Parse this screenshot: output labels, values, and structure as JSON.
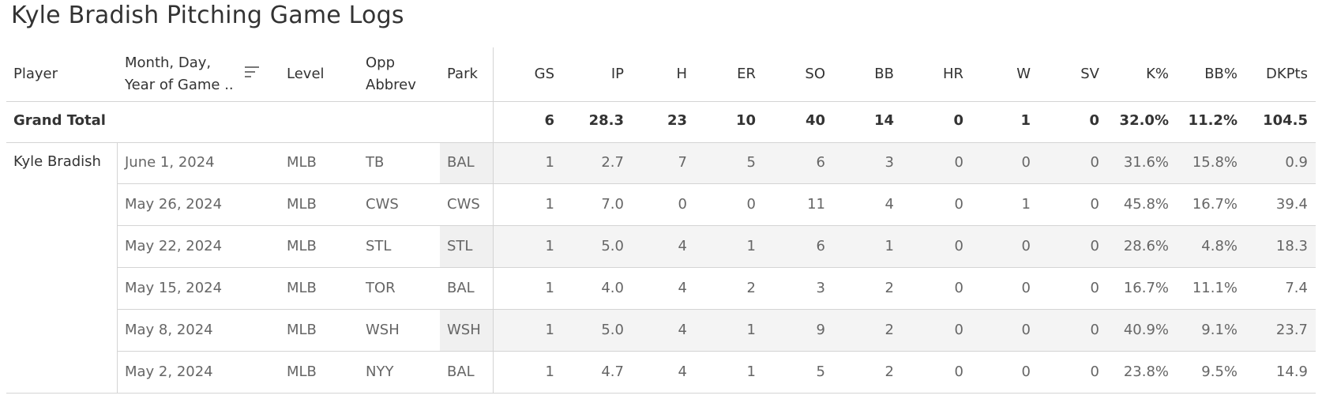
{
  "title": "Kyle Bradish Pitching Game Logs",
  "headers": {
    "player": "Player",
    "date_line1": "Month, Day,",
    "date_line2": "Year of Game ..",
    "level": "Level",
    "opp_line1": "Opp",
    "opp_line2": "Abbrev",
    "park": "Park",
    "stats": [
      "GS",
      "IP",
      "H",
      "ER",
      "SO",
      "BB",
      "HR",
      "W",
      "SV",
      "K%",
      "BB%",
      "DKPts"
    ]
  },
  "grand_total": {
    "label": "Grand Total",
    "stats": [
      "6",
      "28.3",
      "23",
      "10",
      "40",
      "14",
      "0",
      "1",
      "0",
      "32.0%",
      "11.2%",
      "104.5"
    ]
  },
  "player_name": "Kyle Bradish",
  "rows": [
    {
      "date": "June 1, 2024",
      "level": "MLB",
      "opp": "TB",
      "park": "BAL",
      "stats": [
        "1",
        "2.7",
        "7",
        "5",
        "6",
        "3",
        "0",
        "0",
        "0",
        "31.6%",
        "15.8%",
        "0.9"
      ]
    },
    {
      "date": "May 26, 2024",
      "level": "MLB",
      "opp": "CWS",
      "park": "CWS",
      "stats": [
        "1",
        "7.0",
        "0",
        "0",
        "11",
        "4",
        "0",
        "1",
        "0",
        "45.8%",
        "16.7%",
        "39.4"
      ]
    },
    {
      "date": "May 22, 2024",
      "level": "MLB",
      "opp": "STL",
      "park": "STL",
      "stats": [
        "1",
        "5.0",
        "4",
        "1",
        "6",
        "1",
        "0",
        "0",
        "0",
        "28.6%",
        "4.8%",
        "18.3"
      ]
    },
    {
      "date": "May 15, 2024",
      "level": "MLB",
      "opp": "TOR",
      "park": "BAL",
      "stats": [
        "1",
        "4.0",
        "4",
        "2",
        "3",
        "2",
        "0",
        "0",
        "0",
        "16.7%",
        "11.1%",
        "7.4"
      ]
    },
    {
      "date": "May 8, 2024",
      "level": "MLB",
      "opp": "WSH",
      "park": "WSH",
      "stats": [
        "1",
        "5.0",
        "4",
        "1",
        "9",
        "2",
        "0",
        "0",
        "0",
        "40.9%",
        "9.1%",
        "23.7"
      ]
    },
    {
      "date": "May 2, 2024",
      "level": "MLB",
      "opp": "NYY",
      "park": "BAL",
      "stats": [
        "1",
        "4.7",
        "4",
        "1",
        "5",
        "2",
        "0",
        "0",
        "0",
        "23.8%",
        "9.5%",
        "14.9"
      ]
    }
  ],
  "icons": {
    "sort": "sort-descending-icon"
  }
}
